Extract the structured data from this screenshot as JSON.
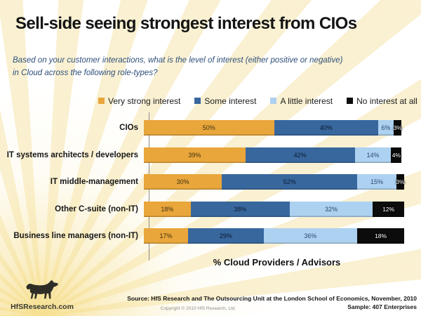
{
  "slide": {
    "title": "Sell-side seeing strongest interest from CIOs",
    "subtitle": "Based on your customer interactions, what is the level of interest (either positive or negative) in Cloud across the following role-types?"
  },
  "chart_data": {
    "type": "bar",
    "orientation": "horizontal",
    "stacked": true,
    "title": "Sell-side seeing strongest interest from CIOs",
    "categories": [
      "CIOs",
      "IT systems architects / developers",
      "IT middle-management",
      "Other C-suite (non-IT)",
      "Business line managers (non-IT)"
    ],
    "series": [
      {
        "name": "Very strong interest",
        "color": "#E9A63B",
        "label_color": "#3F3010",
        "values": [
          50,
          39,
          30,
          18,
          17
        ]
      },
      {
        "name": "Some interest",
        "color": "#38679E",
        "label_color": "#0B1B2E",
        "values": [
          40,
          42,
          52,
          38,
          29
        ]
      },
      {
        "name": "A little interest",
        "color": "#ADD1F0",
        "label_color": "#2B4A6D",
        "values": [
          6,
          14,
          15,
          32,
          36
        ]
      },
      {
        "name": "No interest at all",
        "color": "#0C0C0C",
        "label_color": "#FFFFFF",
        "values": [
          3,
          4,
          3,
          12,
          18
        ]
      }
    ],
    "value_suffix": "%",
    "xlabel": "% Cloud Providers / Advisors",
    "xlim": [
      0,
      100
    ],
    "legend_position": "top",
    "grid": false
  },
  "footer": {
    "source_line": "Source:  HfS Research and  The Outsourcing Unit at the London School of Economics, November, 2010",
    "sample_line": "Sample:  407 Enterprises",
    "copyright": "Copyright © 2010 HfS Research, Ltd."
  },
  "logo": {
    "icon": "horse-silhouette-icon",
    "text": "HfSResearch.com"
  },
  "colors": {
    "subtitle_text": "#2E4F7A",
    "title_text": "#141414",
    "axis_line": "#8A8A8A",
    "ray_yellow": "#F4D66E",
    "ray_cream": "#F7E9B9"
  }
}
